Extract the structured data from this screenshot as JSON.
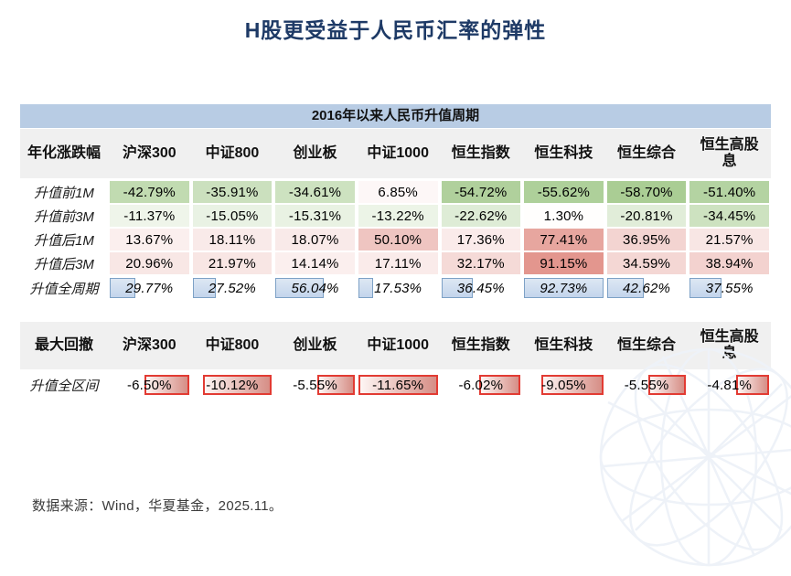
{
  "title": "H股更受益于人民币汇率的弹性",
  "footer": "数据来源：Wind，华夏基金，2025.11。",
  "colors": {
    "title_text": "#1e3a66",
    "banner_bg": "#b8cce4",
    "header_bg": "#f0f0f0",
    "heat_negative_green": "#a8cc92",
    "heat_positive_red": "#e2948c",
    "databar_blue_fill": "#c3d5ec",
    "databar_blue_border": "#7da1c6",
    "drawdown_bar_border": "#e23b33",
    "drawdown_bar_fill": "#d68e86"
  },
  "chart_data": [
    {
      "type": "table",
      "banner": "2016年以来人民币升值周期",
      "corner": "年化涨跌幅",
      "columns": [
        "沪深300",
        "中证800",
        "创业板",
        "中证1000",
        "恒生指数",
        "恒生科技",
        "恒生综合",
        "恒生高股息"
      ],
      "rows": [
        {
          "label": "升值前1M",
          "values": [
            -42.79,
            -35.91,
            -34.61,
            6.85,
            -54.72,
            -55.62,
            -58.7,
            -51.4
          ],
          "style": "heat"
        },
        {
          "label": "升值前3M",
          "values": [
            -11.37,
            -15.05,
            -15.31,
            -13.22,
            -22.62,
            1.3,
            -20.81,
            -34.45
          ],
          "style": "heat"
        },
        {
          "label": "升值后1M",
          "values": [
            13.67,
            18.11,
            18.07,
            50.1,
            17.36,
            77.41,
            36.95,
            21.57
          ],
          "style": "heat"
        },
        {
          "label": "升值后3M",
          "values": [
            20.96,
            21.97,
            14.14,
            17.11,
            32.17,
            91.15,
            34.59,
            38.94
          ],
          "style": "heat"
        },
        {
          "label": "升值全周期",
          "values": [
            29.77,
            27.52,
            56.04,
            17.53,
            36.45,
            92.73,
            42.62,
            37.55
          ],
          "style": "databar"
        }
      ],
      "value_format": "percent",
      "layout": {
        "heat_scale": "green = negative, red = positive, white = 0",
        "databar": "blue bars anchored left, scaled to max 92.73"
      }
    },
    {
      "type": "table",
      "banner": null,
      "corner": "最大回撤",
      "columns": [
        "沪深300",
        "中证800",
        "创业板",
        "中证1000",
        "恒生指数",
        "恒生科技",
        "恒生综合",
        "恒生高股息"
      ],
      "rows": [
        {
          "label": "升值全区间",
          "values": [
            -6.5,
            -10.12,
            -5.55,
            -11.65,
            -6.02,
            -9.05,
            -5.55,
            -4.81
          ],
          "style": "drawdown"
        }
      ],
      "value_format": "percent",
      "layout": {
        "databar": "red-bordered bars anchored right, scaled to max |−11.65|"
      }
    }
  ]
}
